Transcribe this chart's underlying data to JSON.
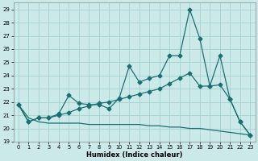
{
  "xlabel": "Humidex (Indice chaleur)",
  "bg_color": "#cce9e9",
  "grid_color": "#aad4d4",
  "line_color": "#1a7070",
  "xlim": [
    -0.5,
    23.5
  ],
  "ylim": [
    19,
    29.5
  ],
  "yticks": [
    19,
    20,
    21,
    22,
    23,
    24,
    25,
    26,
    27,
    28,
    29
  ],
  "xticks": [
    0,
    1,
    2,
    3,
    4,
    5,
    6,
    7,
    8,
    9,
    10,
    11,
    12,
    13,
    14,
    15,
    16,
    17,
    18,
    19,
    20,
    21,
    22,
    23
  ],
  "line1_x": [
    0,
    1,
    2,
    3,
    4,
    5,
    6,
    7,
    8,
    9,
    10,
    11,
    12,
    13,
    14,
    15,
    16,
    17,
    18,
    19,
    20,
    21,
    22,
    23
  ],
  "line1_y": [
    21.8,
    20.5,
    20.8,
    20.8,
    21.1,
    22.5,
    21.9,
    21.8,
    21.8,
    21.5,
    22.3,
    24.7,
    23.5,
    23.8,
    24.0,
    25.5,
    25.5,
    29.0,
    26.8,
    23.2,
    23.3,
    22.2,
    20.5,
    19.5
  ],
  "line2_x": [
    0,
    1,
    2,
    3,
    4,
    5,
    6,
    7,
    8,
    9,
    10,
    11,
    12,
    13,
    14,
    15,
    16,
    17,
    18,
    19,
    20,
    21,
    22,
    23
  ],
  "line2_y": [
    21.8,
    20.5,
    20.8,
    20.8,
    21.0,
    21.2,
    21.5,
    21.7,
    21.9,
    22.0,
    22.2,
    22.4,
    22.6,
    22.8,
    23.0,
    23.4,
    23.8,
    24.2,
    23.2,
    23.2,
    25.5,
    22.2,
    20.5,
    19.5
  ],
  "line3_x": [
    0,
    1,
    2,
    3,
    4,
    5,
    6,
    7,
    8,
    9,
    10,
    11,
    12,
    13,
    14,
    15,
    16,
    17,
    18,
    19,
    20,
    21,
    22,
    23
  ],
  "line3_y": [
    21.8,
    20.8,
    20.5,
    20.4,
    20.4,
    20.4,
    20.4,
    20.3,
    20.3,
    20.3,
    20.3,
    20.3,
    20.3,
    20.2,
    20.2,
    20.1,
    20.1,
    20.0,
    20.0,
    19.9,
    19.8,
    19.7,
    19.6,
    19.5
  ]
}
